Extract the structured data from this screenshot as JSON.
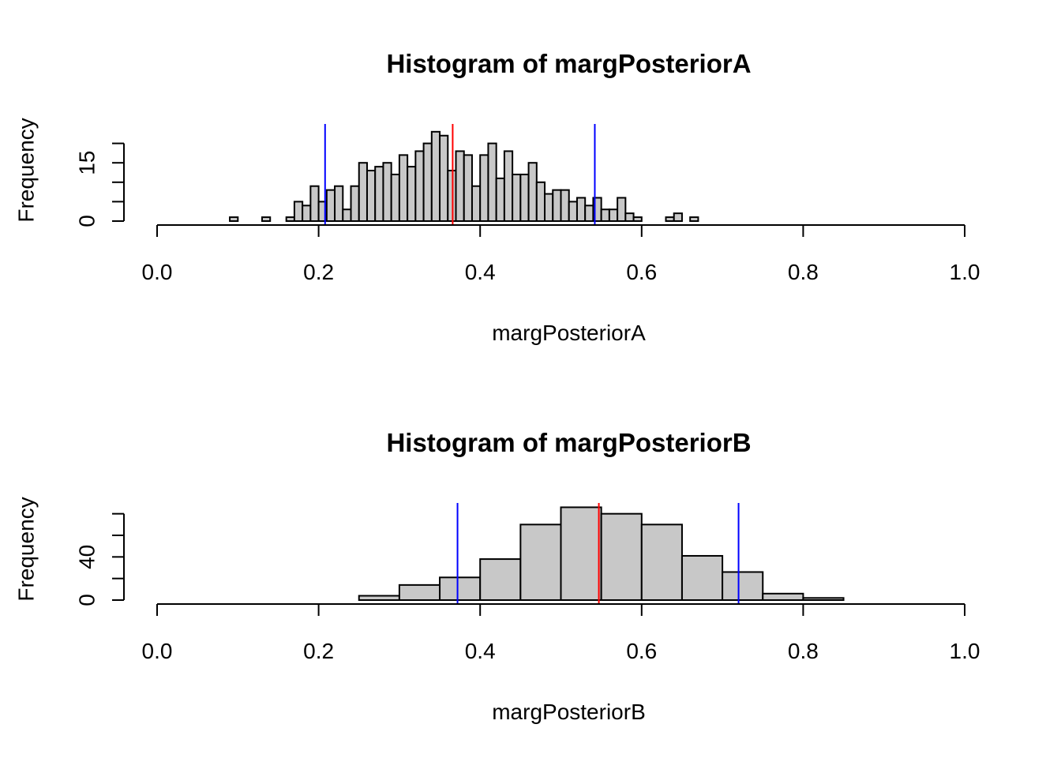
{
  "chart_data": [
    {
      "type": "bar",
      "title": "Histogram of margPosteriorA",
      "xlabel": "margPosteriorA",
      "ylabel": "Frequency",
      "xlim": [
        0,
        1
      ],
      "ylim": [
        0,
        25
      ],
      "x_ticks": [
        "0.0",
        "0.2",
        "0.4",
        "0.6",
        "0.8",
        "1.0"
      ],
      "y_ticks": [
        "0",
        "15"
      ],
      "y_tick_values": [
        0,
        5,
        10,
        15,
        20
      ],
      "y_tick_labeled": [
        true,
        false,
        false,
        true,
        false
      ],
      "bin_width": 0.01,
      "bin_starts": [
        0.09,
        0.1,
        0.11,
        0.12,
        0.13,
        0.14,
        0.15,
        0.16,
        0.17,
        0.18,
        0.19,
        0.2,
        0.21,
        0.22,
        0.23,
        0.24,
        0.25,
        0.26,
        0.27,
        0.28,
        0.29,
        0.3,
        0.31,
        0.32,
        0.33,
        0.34,
        0.35,
        0.36,
        0.37,
        0.38,
        0.39,
        0.4,
        0.41,
        0.42,
        0.43,
        0.44,
        0.45,
        0.46,
        0.47,
        0.48,
        0.49,
        0.5,
        0.51,
        0.52,
        0.53,
        0.54,
        0.55,
        0.56,
        0.57,
        0.58,
        0.59,
        0.6,
        0.61,
        0.62,
        0.63,
        0.64,
        0.65,
        0.66
      ],
      "values": [
        1,
        0,
        0,
        0,
        1,
        0,
        0,
        1,
        5,
        4,
        9,
        5,
        8,
        9,
        3,
        9,
        15,
        13,
        14,
        15,
        12,
        17,
        14,
        18,
        20,
        23,
        22,
        13,
        18,
        17,
        9,
        17,
        20,
        11,
        18,
        12,
        12,
        15,
        10,
        7,
        8,
        8,
        5,
        6,
        4,
        6,
        3,
        3,
        6,
        2,
        1,
        0,
        0,
        0,
        1,
        2,
        0,
        1
      ],
      "vlines": [
        {
          "x": 0.208,
          "color": "#0000ff"
        },
        {
          "x": 0.366,
          "color": "#ff0000"
        },
        {
          "x": 0.542,
          "color": "#0000ff"
        }
      ]
    },
    {
      "type": "bar",
      "title": "Histogram of margPosteriorB",
      "xlabel": "margPosteriorB",
      "ylabel": "Frequency",
      "xlim": [
        0,
        1
      ],
      "ylim": [
        0,
        90
      ],
      "x_ticks": [
        "0.0",
        "0.2",
        "0.4",
        "0.6",
        "0.8",
        "1.0"
      ],
      "y_ticks": [
        "0",
        "40"
      ],
      "y_tick_values": [
        0,
        20,
        40,
        60,
        80
      ],
      "y_tick_labeled": [
        true,
        false,
        true,
        false,
        false
      ],
      "bin_width": 0.05,
      "bin_starts": [
        0.25,
        0.3,
        0.35,
        0.4,
        0.45,
        0.5,
        0.55,
        0.6,
        0.65,
        0.7,
        0.75,
        0.8
      ],
      "values": [
        4,
        14,
        21,
        38,
        70,
        86,
        80,
        70,
        41,
        26,
        6,
        2
      ],
      "vlines": [
        {
          "x": 0.372,
          "color": "#0000ff"
        },
        {
          "x": 0.547,
          "color": "#ff0000"
        },
        {
          "x": 0.72,
          "color": "#0000ff"
        }
      ]
    }
  ]
}
